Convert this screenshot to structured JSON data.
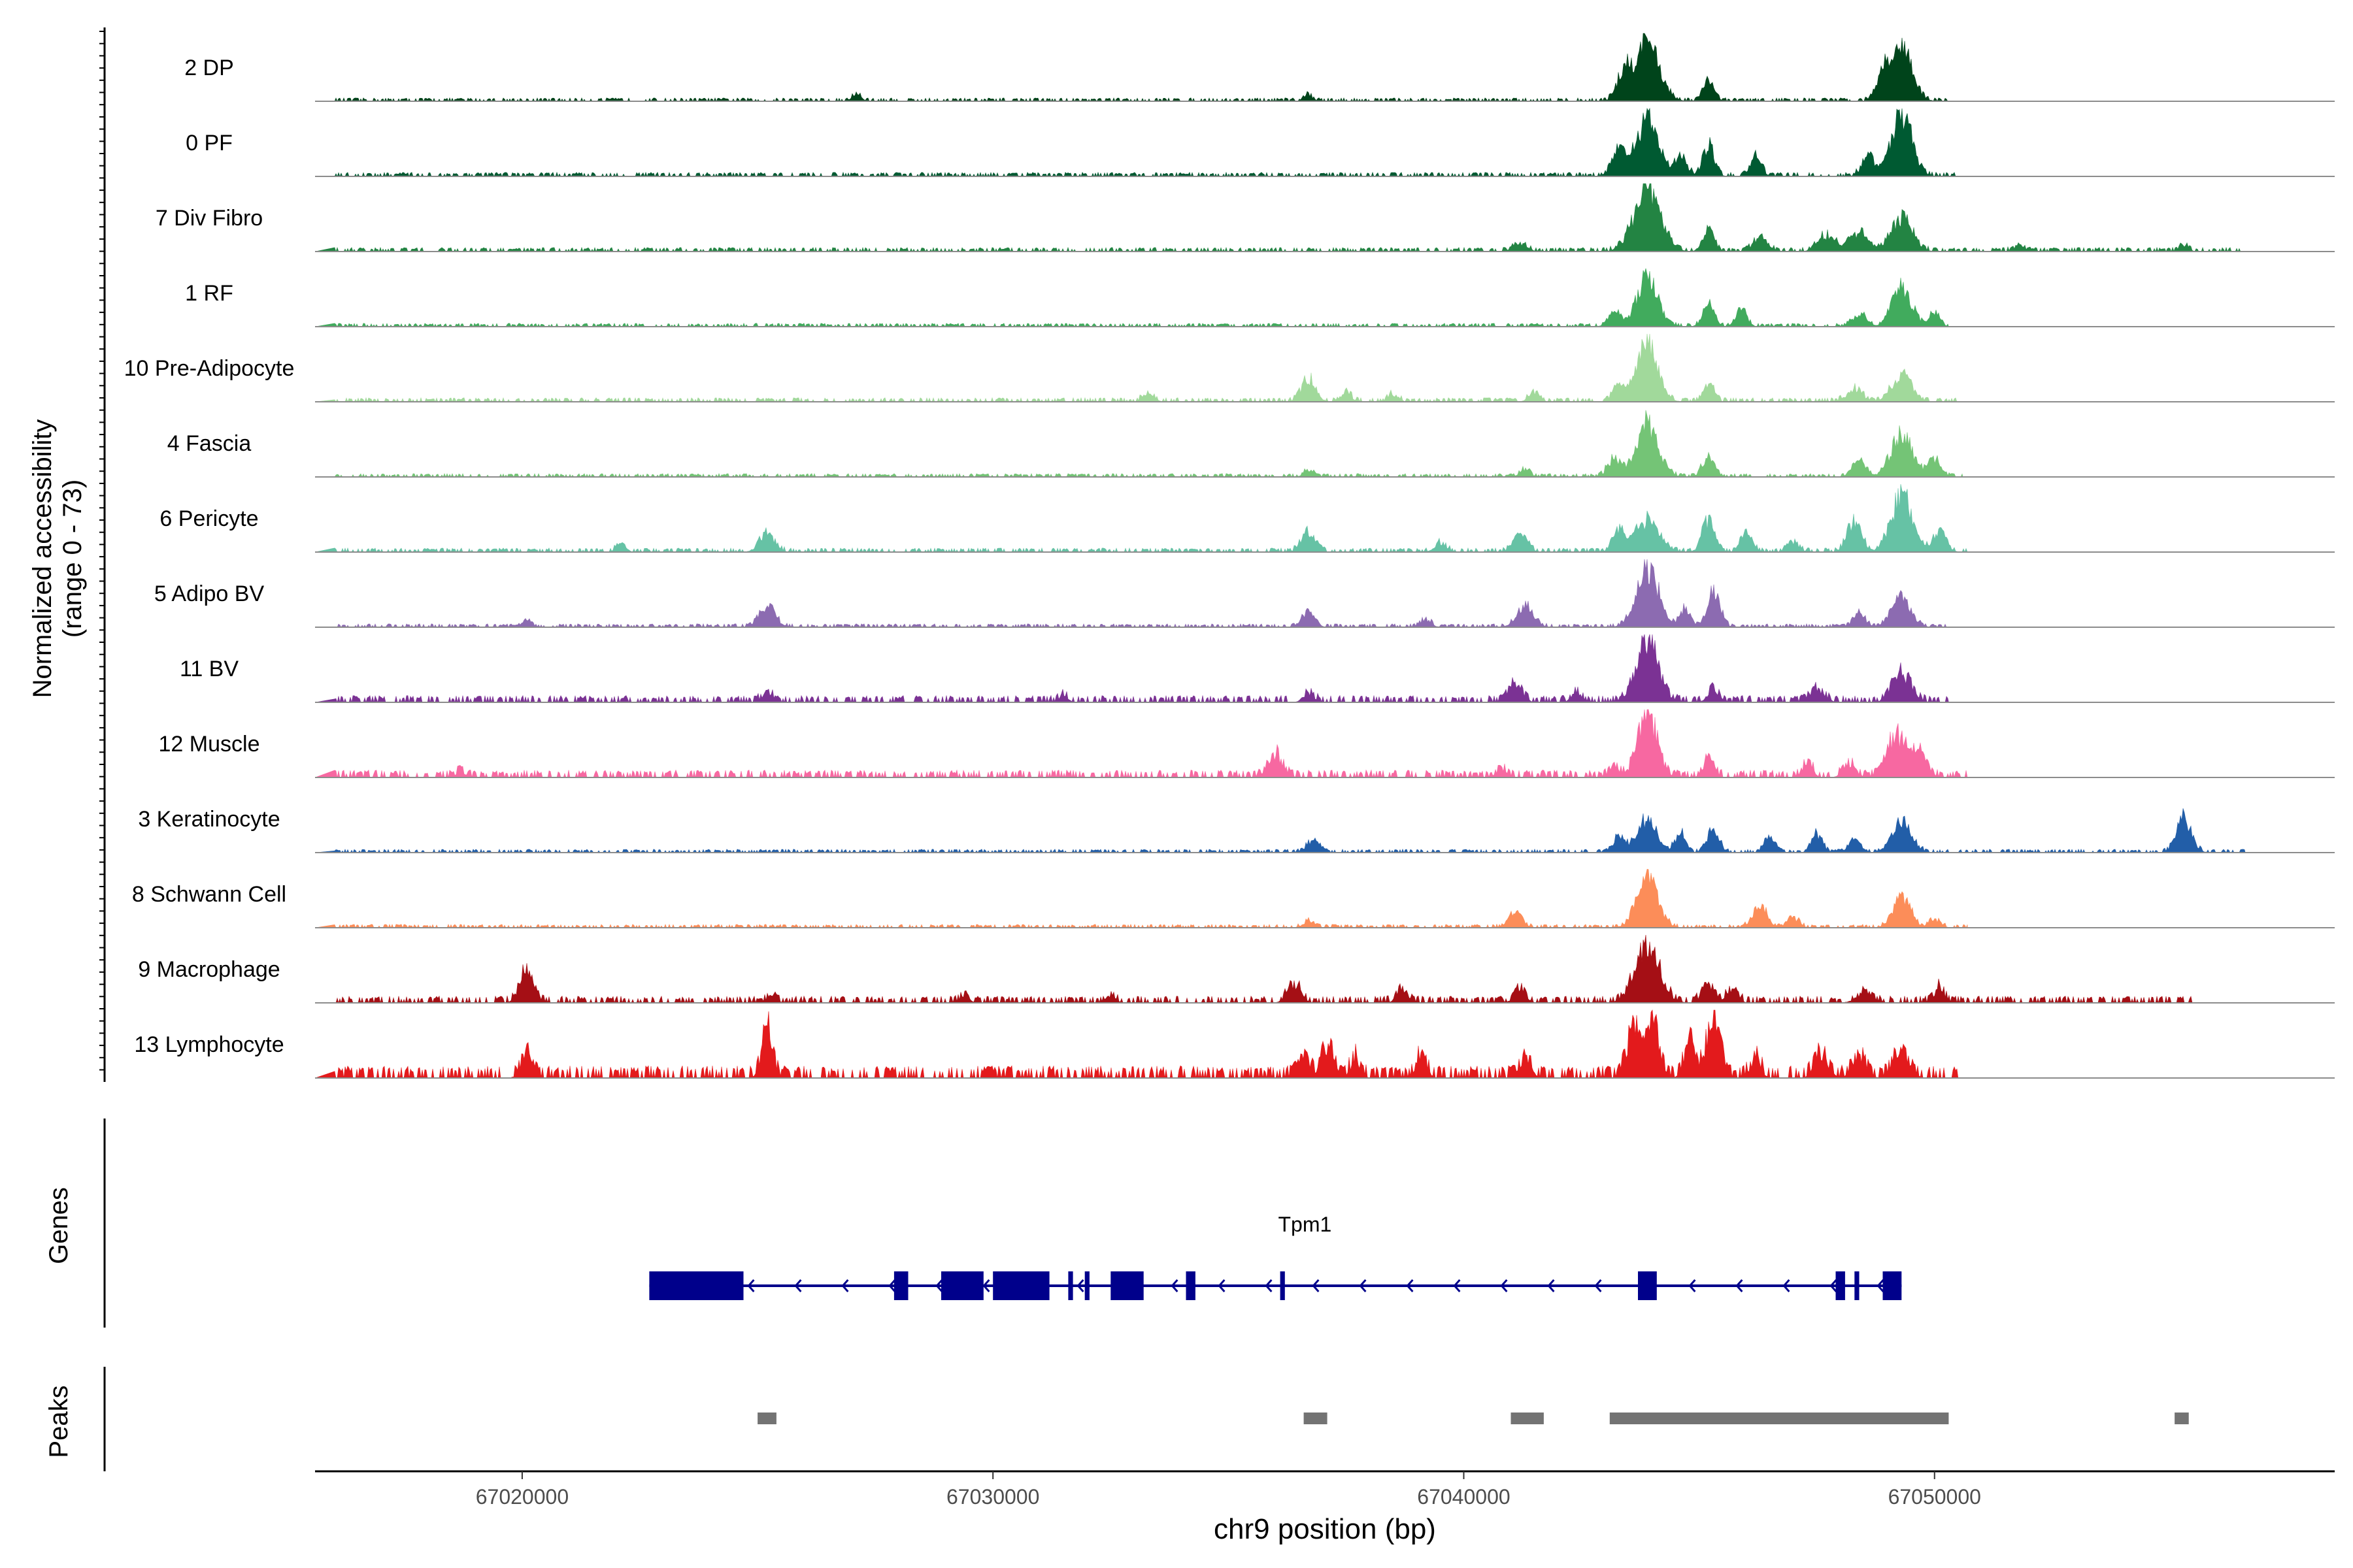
{
  "chart_data": {
    "type": "area",
    "title": "",
    "ylabel_line1": "Normalized accessibility",
    "ylabel_line2": "(range 0 - 73)",
    "yrange": [
      0,
      73
    ],
    "xlabel": "chr9 position (bp)",
    "xlim": [
      67015600,
      67058500
    ],
    "xticks": [
      "67020000",
      "67030000",
      "67040000",
      "67050000"
    ],
    "tracks": [
      {
        "name": "2 DP",
        "color": "#00441b",
        "peaks": [
          [
            67043900,
            0.95,
            250
          ],
          [
            67049300,
            0.85,
            220
          ],
          [
            67045200,
            0.35,
            120
          ],
          [
            67043400,
            0.4,
            150
          ],
          [
            67048900,
            0.35,
            150
          ],
          [
            67027100,
            0.1,
            100
          ],
          [
            67036700,
            0.1,
            90
          ]
        ],
        "noise": 0.05,
        "end": 67050300
      },
      {
        "name": "0 PF",
        "color": "#005a32",
        "peaks": [
          [
            67043900,
            0.9,
            240
          ],
          [
            67049300,
            0.95,
            220
          ],
          [
            67045200,
            0.5,
            120
          ],
          [
            67044600,
            0.3,
            130
          ],
          [
            67046200,
            0.3,
            120
          ],
          [
            67043300,
            0.4,
            150
          ],
          [
            67048600,
            0.3,
            140
          ]
        ],
        "noise": 0.06,
        "end": 67050500
      },
      {
        "name": "7 Div Fibro",
        "color": "#238443",
        "peaks": [
          [
            67043900,
            1.0,
            280
          ],
          [
            67045200,
            0.35,
            120
          ],
          [
            67049300,
            0.55,
            220
          ],
          [
            67048400,
            0.3,
            200
          ],
          [
            67047700,
            0.25,
            180
          ],
          [
            67046300,
            0.2,
            150
          ],
          [
            67041200,
            0.12,
            150
          ],
          [
            67055300,
            0.1,
            90
          ],
          [
            67051800,
            0.08,
            120
          ]
        ],
        "noise": 0.06,
        "end": 67056500
      },
      {
        "name": "1 RF",
        "color": "#41ab5d",
        "peaks": [
          [
            67043900,
            0.75,
            220
          ],
          [
            67049300,
            0.65,
            200
          ],
          [
            67045200,
            0.35,
            120
          ],
          [
            67045900,
            0.3,
            110
          ],
          [
            67048400,
            0.2,
            150
          ],
          [
            67043200,
            0.25,
            130
          ],
          [
            67050000,
            0.2,
            110
          ]
        ],
        "noise": 0.05,
        "end": 67050300
      },
      {
        "name": "10 Pre-Adipocyte",
        "color": "#a1d99b",
        "peaks": [
          [
            67043900,
            0.9,
            220
          ],
          [
            67049300,
            0.45,
            200
          ],
          [
            67045200,
            0.3,
            110
          ],
          [
            67043300,
            0.25,
            130
          ],
          [
            67036700,
            0.35,
            150
          ],
          [
            67033300,
            0.12,
            120
          ],
          [
            67037500,
            0.15,
            110
          ],
          [
            67038500,
            0.12,
            110
          ],
          [
            67041500,
            0.15,
            110
          ],
          [
            67048300,
            0.2,
            160
          ]
        ],
        "noise": 0.06,
        "end": 67050500
      },
      {
        "name": "4 Fascia",
        "color": "#74c476",
        "peaks": [
          [
            67043900,
            0.85,
            230
          ],
          [
            67049300,
            0.7,
            220
          ],
          [
            67045200,
            0.35,
            120
          ],
          [
            67043200,
            0.3,
            140
          ],
          [
            67048400,
            0.25,
            140
          ],
          [
            67050000,
            0.3,
            130
          ],
          [
            67036700,
            0.1,
            100
          ],
          [
            67041300,
            0.12,
            110
          ]
        ],
        "noise": 0.05,
        "end": 67050600
      },
      {
        "name": "6 Pericyte",
        "color": "#66c2a5",
        "peaks": [
          [
            67043900,
            0.5,
            240
          ],
          [
            67049300,
            0.9,
            220
          ],
          [
            67045200,
            0.5,
            130
          ],
          [
            67046000,
            0.3,
            120
          ],
          [
            67048300,
            0.5,
            150
          ],
          [
            67025200,
            0.3,
            160
          ],
          [
            67036700,
            0.3,
            150
          ],
          [
            67041200,
            0.3,
            140
          ],
          [
            67043300,
            0.35,
            130
          ],
          [
            67050100,
            0.35,
            140
          ],
          [
            67022100,
            0.12,
            100
          ],
          [
            67039500,
            0.15,
            120
          ],
          [
            67047000,
            0.15,
            120
          ]
        ],
        "noise": 0.06,
        "end": 67050700
      },
      {
        "name": "5 Adipo BV",
        "color": "#8c6bb1",
        "peaks": [
          [
            67043900,
            0.95,
            230
          ],
          [
            67045300,
            0.55,
            140
          ],
          [
            67049300,
            0.45,
            200
          ],
          [
            67044700,
            0.3,
            110
          ],
          [
            67025200,
            0.35,
            170
          ],
          [
            67041300,
            0.35,
            170
          ],
          [
            67036700,
            0.25,
            130
          ],
          [
            67048400,
            0.2,
            130
          ],
          [
            67020100,
            0.1,
            100
          ],
          [
            67039200,
            0.12,
            110
          ]
        ],
        "noise": 0.05,
        "end": 67050300
      },
      {
        "name": "11 BV",
        "color": "#7b3294",
        "peaks": [
          [
            67043900,
            1.0,
            230
          ],
          [
            67049300,
            0.45,
            200
          ],
          [
            67041100,
            0.3,
            140
          ],
          [
            67042400,
            0.15,
            110
          ],
          [
            67045300,
            0.2,
            120
          ],
          [
            67047500,
            0.2,
            160
          ],
          [
            67025200,
            0.15,
            110
          ],
          [
            67031500,
            0.12,
            90
          ],
          [
            67036700,
            0.12,
            120
          ]
        ],
        "noise": 0.1,
        "end": 67050300
      },
      {
        "name": "12 Muscle",
        "color": "#f768a1",
        "peaks": [
          [
            67043900,
            1.0,
            200
          ],
          [
            67049200,
            0.65,
            200
          ],
          [
            67049700,
            0.45,
            140
          ],
          [
            67036000,
            0.35,
            160
          ],
          [
            67045200,
            0.3,
            110
          ],
          [
            67048200,
            0.2,
            130
          ],
          [
            67047300,
            0.2,
            110
          ],
          [
            67040800,
            0.12,
            110
          ],
          [
            67043200,
            0.15,
            110
          ],
          [
            67018700,
            0.1,
            90
          ]
        ],
        "noise": 0.11,
        "end": 67050700
      },
      {
        "name": "3 Keratinocyte",
        "color": "#225ea8",
        "peaks": [
          [
            67043900,
            0.55,
            200
          ],
          [
            67045300,
            0.4,
            120
          ],
          [
            67044600,
            0.3,
            110
          ],
          [
            67046500,
            0.25,
            110
          ],
          [
            67047500,
            0.3,
            110
          ],
          [
            67049300,
            0.5,
            200
          ],
          [
            67055300,
            0.55,
            160
          ],
          [
            67036800,
            0.2,
            130
          ],
          [
            67043300,
            0.25,
            130
          ],
          [
            67048300,
            0.2,
            130
          ]
        ],
        "noise": 0.05,
        "end": 67056600
      },
      {
        "name": "8 Schwann Cell",
        "color": "#fc8d59",
        "peaks": [
          [
            67043900,
            0.8,
            220
          ],
          [
            67046300,
            0.35,
            150
          ],
          [
            67049300,
            0.5,
            180
          ],
          [
            67041100,
            0.25,
            140
          ],
          [
            67036700,
            0.1,
            120
          ],
          [
            67047000,
            0.15,
            120
          ],
          [
            67050000,
            0.12,
            120
          ]
        ],
        "noise": 0.05,
        "end": 67050700
      },
      {
        "name": "9 Macrophage",
        "color": "#a50f15",
        "peaks": [
          [
            67043900,
            0.9,
            260
          ],
          [
            67020100,
            0.5,
            150
          ],
          [
            67036400,
            0.3,
            140
          ],
          [
            67038700,
            0.2,
            120
          ],
          [
            67041200,
            0.2,
            120
          ],
          [
            67045200,
            0.3,
            130
          ],
          [
            67045700,
            0.2,
            120
          ],
          [
            67050100,
            0.25,
            100
          ],
          [
            67048500,
            0.15,
            170
          ],
          [
            67025300,
            0.12,
            100
          ],
          [
            67032500,
            0.12,
            100
          ],
          [
            67029400,
            0.1,
            100
          ]
        ],
        "noise": 0.1,
        "end": 67055500
      },
      {
        "name": "13 Lymphocyte",
        "color": "#e31a1c",
        "peaks": [
          [
            67043600,
            0.75,
            140
          ],
          [
            67044000,
            0.85,
            150
          ],
          [
            67045300,
            0.95,
            140
          ],
          [
            67044800,
            0.6,
            110
          ],
          [
            67025200,
            0.75,
            110
          ],
          [
            67020100,
            0.4,
            120
          ],
          [
            67037100,
            0.5,
            130
          ],
          [
            67036600,
            0.35,
            110
          ],
          [
            67037700,
            0.3,
            100
          ],
          [
            67039100,
            0.35,
            110
          ],
          [
            67047600,
            0.35,
            140
          ],
          [
            67049300,
            0.4,
            160
          ],
          [
            67048400,
            0.35,
            140
          ],
          [
            67041300,
            0.3,
            120
          ],
          [
            67046200,
            0.3,
            110
          ]
        ],
        "noise": 0.18,
        "end": 67050500
      }
    ],
    "genes_label": "Genes",
    "gene": {
      "name": "Tpm1",
      "start": 67022700,
      "end": 67049300,
      "strand": "-",
      "color": "#00008b",
      "exons": [
        [
          67022700,
          67024700
        ],
        [
          67027900,
          67028200
        ],
        [
          67028900,
          67029800
        ],
        [
          67030000,
          67031200
        ],
        [
          67031600,
          67031700
        ],
        [
          67031950,
          67032050
        ],
        [
          67032500,
          67033200
        ],
        [
          67034100,
          67034300
        ],
        [
          67036100,
          67036200
        ],
        [
          67043700,
          67044100
        ],
        [
          67047900,
          67048100
        ],
        [
          67048300,
          67048400
        ],
        [
          67048900,
          67049300
        ]
      ]
    },
    "peaks_label": "Peaks",
    "peak_color": "#737373",
    "peak_regions": [
      [
        67025000,
        67025400
      ],
      [
        67036600,
        67037100
      ],
      [
        67041000,
        67041700
      ],
      [
        67043100,
        67050300
      ],
      [
        67055100,
        67055400
      ]
    ]
  }
}
